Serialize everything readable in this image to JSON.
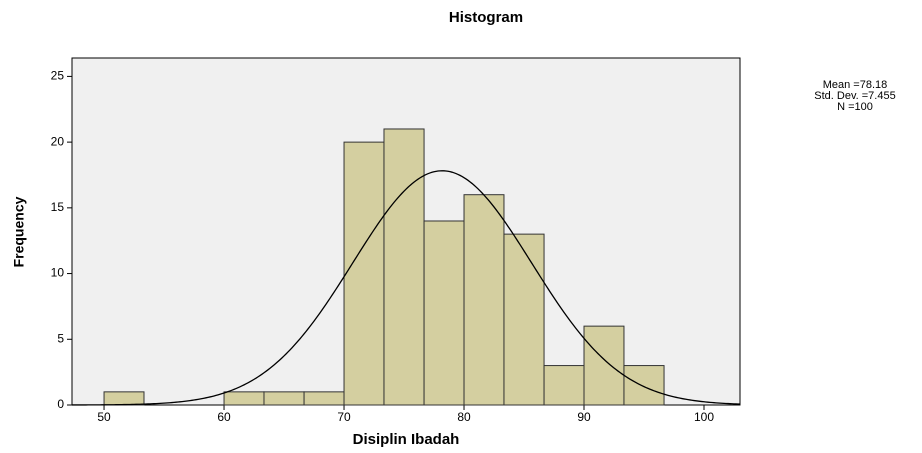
{
  "chart_data": {
    "type": "histogram",
    "title": "Histogram",
    "xlabel": "Disiplin Ibadah",
    "ylabel": "Frequency",
    "bins": [
      50,
      53.33,
      56.67,
      60,
      63.33,
      66.67,
      70,
      73.33,
      76.67,
      80,
      83.33,
      86.67,
      90,
      93.33,
      96.67
    ],
    "values": [
      1,
      0,
      0,
      1,
      1,
      1,
      20,
      21,
      14,
      16,
      13,
      3,
      6,
      3
    ],
    "color": "#d4cfa0",
    "xlim": [
      47.33,
      103
    ],
    "xticks": [
      50,
      60,
      70,
      80,
      90,
      100
    ],
    "ylim": [
      0,
      26.4
    ],
    "yticks": [
      0,
      5,
      10,
      15,
      20,
      25
    ],
    "grid": false,
    "stats": [
      {
        "value": 78.18,
        "label": "Mean =78.18"
      },
      {
        "value": 7.455,
        "label": "Std. Dev. =7.455"
      },
      {
        "value": 100,
        "label": "N =100"
      }
    ]
  }
}
